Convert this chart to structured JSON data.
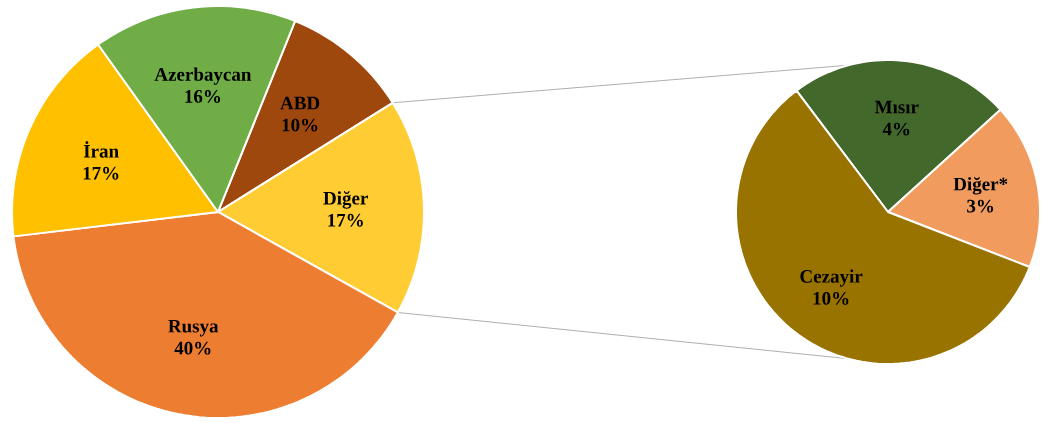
{
  "chart_data": [
    {
      "type": "pie",
      "categories": [
        "ABD",
        "Diğer",
        "Rusya",
        "İran",
        "Azerbaycan"
      ],
      "values": [
        10,
        17,
        40,
        17,
        16
      ],
      "value_labels": [
        "10%",
        "17%",
        "40%",
        "17%",
        "16%"
      ],
      "colors": [
        "#9e480e",
        "#ffcd33",
        "#ed7d31",
        "#ffc000",
        "#70ad47"
      ]
    },
    {
      "type": "pie",
      "categories": [
        "Mısır",
        "Diğer*",
        "Cezayir"
      ],
      "values": [
        4,
        3,
        10
      ],
      "value_labels": [
        "4%",
        "3%",
        "10%"
      ],
      "colors": [
        "#43682b",
        "#f19c5e",
        "#997300"
      ]
    }
  ]
}
